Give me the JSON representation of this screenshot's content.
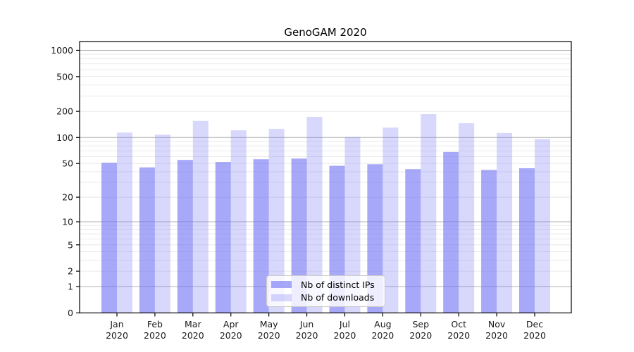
{
  "title": "GenoGAM 2020",
  "legend": {
    "items": [
      {
        "label": "Nb of distinct IPs",
        "series_key": "ips"
      },
      {
        "label": "Nb of downloads",
        "series_key": "downloads"
      }
    ]
  },
  "colors": {
    "bar_fill_ips": "rgba(110,110,245,0.60)",
    "bar_fill_downloads": "rgba(110,110,245,0.27)",
    "grid_major": "#b0b0b0",
    "grid_minor": "#e8e8e8",
    "spine": "#000000",
    "tick": "#000000",
    "text": "#1a1a1a",
    "legend_bg": "rgba(255,255,255,0.8)",
    "legend_border": "#cccccc"
  },
  "chart_data": {
    "type": "bar",
    "title": "GenoGAM 2020",
    "x_tick_line1": [
      "Jan",
      "Feb",
      "Mar",
      "Apr",
      "May",
      "Jun",
      "Jul",
      "Aug",
      "Sep",
      "Oct",
      "Nov",
      "Dec"
    ],
    "x_tick_line2": "2020",
    "series": [
      {
        "name": "Nb of distinct IPs",
        "key": "ips",
        "values": [
          51,
          45,
          55,
          52,
          56,
          57,
          47,
          49,
          43,
          68,
          42,
          44
        ]
      },
      {
        "name": "Nb of downloads",
        "key": "downloads",
        "values": [
          114,
          108,
          155,
          121,
          126,
          173,
          101,
          130,
          186,
          146,
          113,
          96
        ]
      }
    ],
    "yscale": "log1p",
    "y_ticks": [
      0,
      1,
      2,
      5,
      10,
      20,
      50,
      100,
      200,
      500,
      1000
    ],
    "y_major_gridlines": [
      1,
      10,
      100,
      1000
    ],
    "minor_gridlines": true,
    "ylim": [
      0,
      1260
    ],
    "xlabel": "",
    "ylabel": "",
    "legend_position": "lower-center-inside",
    "grid": "horizontal"
  }
}
